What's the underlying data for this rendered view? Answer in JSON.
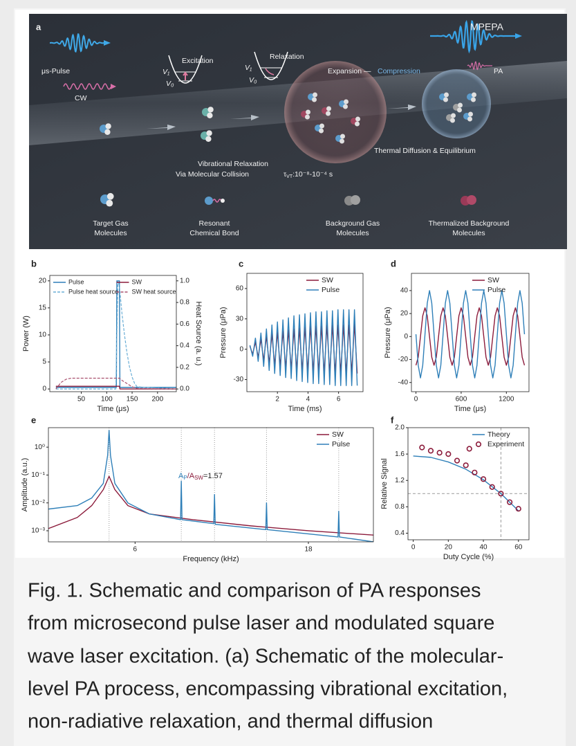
{
  "panel_a": {
    "label": "a",
    "pulse": "μs-Pulse",
    "cw": "CW",
    "excitation": "Excitation",
    "relaxation": "Relaxation",
    "v1": "V₁",
    "v0": "V₀",
    "expansion": "Expansion —",
    "compression": "Compression",
    "mpepa": "MPEPA",
    "pa": "PA",
    "thermal": "Thermal Diffusion & Equilibrium",
    "relaxation_lines": [
      "Vibrational Relaxation",
      "Via Molecular Collision"
    ],
    "tau": "τ",
    "tau_sub": "VT",
    "tau_range": ":10⁻⁸-10⁻⁴ s",
    "legend": [
      [
        "Target Gas",
        "Molecules"
      ],
      [
        "Resonant",
        "Chemical Bond"
      ],
      [
        "Background Gas",
        "Molecules"
      ],
      [
        "Thermalized Background",
        "Molecules"
      ]
    ]
  },
  "chart_data": [
    {
      "type": "line",
      "panel_label": "b",
      "xlabel": "Time (μs)",
      "ylabel": "Power (W)",
      "y2label": "Heat Source (a. u.)",
      "xlim": [
        -12,
        237
      ],
      "ylim": [
        -0.5,
        21
      ],
      "y2lim": [
        -0.025,
        1.05
      ],
      "xticks": [
        50,
        100,
        150,
        200
      ],
      "yticks": [
        0,
        5,
        10,
        15,
        20
      ],
      "y2ticks": [
        {
          "value": 0,
          "label": "0.0"
        },
        0.2,
        0.4,
        0.6,
        0.8,
        {
          "value": 1,
          "label": "1.0"
        }
      ],
      "legend": "upper left",
      "legend_columns": 2,
      "series": [
        {
          "name": "Pulse",
          "color": "#2e7fb8",
          "x": [
            0,
            119,
            120,
            125,
            126,
            237
          ],
          "values": [
            0.3,
            0.3,
            20,
            20,
            0.3,
            0.3
          ]
        },
        {
          "name": "Pulse heat source",
          "color": "#6aaed6",
          "dash": true,
          "axis": "y2",
          "x": [
            0,
            118,
            122,
            125,
            130,
            135,
            140,
            145,
            150,
            155,
            160,
            237
          ],
          "values": [
            0,
            0,
            1,
            0.95,
            0.7,
            0.5,
            0.33,
            0.2,
            0.11,
            0.05,
            0.02,
            0
          ]
        },
        {
          "name": "SW",
          "color": "#8b1a3a",
          "x": [
            0,
            125,
            126,
            237
          ],
          "values": [
            0.5,
            0.5,
            0,
            0
          ]
        },
        {
          "name": "SW heat source",
          "color": "#a8506e",
          "dash": true,
          "axis": "y2",
          "x": [
            0,
            10,
            20,
            30,
            40,
            60,
            125,
            130,
            140,
            150,
            160,
            237
          ],
          "values": [
            0,
            0.06,
            0.09,
            0.1,
            0.1,
            0.1,
            0.1,
            0.08,
            0.05,
            0.02,
            0.005,
            0
          ]
        }
      ]
    },
    {
      "type": "line",
      "panel_label": "c",
      "xlabel": "Time (ms)",
      "ylabel": "Pressure (μPa)",
      "xlim": [
        0,
        7.6
      ],
      "ylim": [
        -42,
        75
      ],
      "xticks": [
        2,
        4,
        6
      ],
      "yticks": [
        -30,
        0,
        30,
        60
      ],
      "legend": "upper right",
      "x": [
        0.2,
        0.38,
        0.56,
        0.74,
        0.92,
        1.1,
        1.28,
        1.46,
        1.64,
        1.82,
        2,
        2.18,
        2.36,
        2.54,
        2.72,
        2.9,
        3.08,
        3.26,
        3.44,
        3.62,
        3.8,
        3.98,
        4.16,
        4.34,
        4.52,
        4.7,
        4.88,
        5.06,
        5.24,
        5.42,
        5.6,
        5.78,
        5.96,
        6.14,
        6.32,
        6.5,
        6.68,
        6.86,
        7.04,
        7.22
      ],
      "series": [
        {
          "name": "SW",
          "color": "#8b1a3a",
          "values": [
            3,
            -5,
            7,
            -8,
            10,
            -11,
            13,
            -14,
            15,
            -16,
            17,
            -17,
            18,
            -19,
            19,
            -20,
            20,
            -21,
            21,
            -22,
            22,
            -22,
            23,
            -23,
            23,
            -23,
            23,
            -24,
            24,
            -24,
            24,
            -24,
            24,
            -24,
            24,
            -24,
            24,
            -24,
            25,
            -24
          ]
        },
        {
          "name": "Pulse",
          "color": "#2e7fb8",
          "values": [
            4,
            -7,
            11,
            -12,
            16,
            -17,
            20,
            -21,
            24,
            -24,
            27,
            -26,
            29,
            -28,
            31,
            -29,
            33,
            -31,
            34,
            -32,
            35,
            -33,
            36,
            -34,
            37,
            -34,
            37,
            -35,
            38,
            -35,
            38,
            -36,
            39,
            -36,
            39,
            -36,
            39,
            -36,
            39,
            -36
          ]
        }
      ]
    },
    {
      "type": "line",
      "panel_label": "d",
      "xlabel": "Time (μs)",
      "ylabel": "Pressure (μPa)",
      "xlim": [
        -60,
        1500
      ],
      "ylim": [
        -48,
        55
      ],
      "xticks": [
        0,
        600,
        1200
      ],
      "yticks": [
        -40,
        -20,
        0,
        20,
        40
      ],
      "legend": "upper right",
      "x": [
        0,
        30,
        60,
        90,
        120,
        150,
        180,
        210,
        240,
        270,
        300,
        330,
        360,
        390,
        420,
        450,
        480,
        510,
        540,
        570,
        600,
        630,
        660,
        690,
        720,
        750,
        780,
        810,
        840,
        870,
        900,
        930,
        960,
        990,
        1020,
        1050,
        1080,
        1110,
        1140,
        1170,
        1200,
        1230,
        1260,
        1290,
        1320,
        1350,
        1380,
        1410,
        1440
      ],
      "series": [
        {
          "name": "SW",
          "color": "#8b1a3a",
          "values": [
            -25,
            -18,
            0,
            18,
            25,
            18,
            0,
            -18,
            -25,
            -18,
            0,
            18,
            25,
            18,
            0,
            -18,
            -25,
            -18,
            0,
            18,
            25,
            18,
            0,
            -18,
            -25,
            -18,
            0,
            18,
            25,
            18,
            0,
            -18,
            -25,
            -18,
            0,
            18,
            25,
            18,
            0,
            -18,
            -25,
            -18,
            0,
            18,
            25,
            18,
            0,
            -18,
            -25
          ]
        },
        {
          "name": "Pulse",
          "color": "#2e7fb8",
          "values": [
            2,
            -25,
            -36,
            -25,
            2,
            29,
            40,
            29,
            2,
            -25,
            -36,
            -25,
            2,
            29,
            40,
            29,
            2,
            -25,
            -36,
            -25,
            2,
            29,
            40,
            29,
            2,
            -25,
            -36,
            -25,
            2,
            29,
            40,
            29,
            2,
            -25,
            -36,
            -25,
            2,
            29,
            40,
            29,
            2,
            -25,
            -36,
            -25,
            2,
            29,
            40,
            29,
            2
          ]
        }
      ]
    },
    {
      "type": "line",
      "panel_label": "e",
      "xlabel": "Frequency (kHz)",
      "ylabel": "Amplitude (a.u.)",
      "yscale": "log",
      "xlim": [
        0,
        22.5
      ],
      "ylim": [
        0.0004,
        5
      ],
      "xticks": [
        6,
        18
      ],
      "yticks": [
        {
          "value": 0.001,
          "label": "10⁻³"
        },
        {
          "value": 0.01,
          "label": "10⁻²"
        },
        {
          "value": 0.1,
          "label": "10⁻¹"
        },
        {
          "value": 1,
          "label": "10⁰"
        }
      ],
      "legend": "upper right",
      "vlines": [
        4.2,
        9.2,
        11.5,
        15.1,
        20.1
      ],
      "annotation_parts": [
        "A",
        "P",
        "/A",
        "SW",
        "=1.57"
      ],
      "series": [
        {
          "name": "SW",
          "color": "#8b1a3a",
          "x": [
            0,
            2,
            3,
            3.8,
            4.2,
            4.6,
            5.5,
            7,
            10,
            14,
            18,
            22.5
          ],
          "values": [
            0.0012,
            0.003,
            0.008,
            0.03,
            0.09,
            0.03,
            0.008,
            0.004,
            0.0025,
            0.0015,
            0.001,
            0.0007
          ]
        },
        {
          "name": "Pulse",
          "color": "#2e7fb8",
          "x": [
            0,
            2,
            3,
            3.8,
            4.1,
            4.2,
            4.3,
            4.6,
            5.5,
            7,
            9.15,
            9.2,
            9.25,
            11.45,
            11.5,
            11.55,
            15.05,
            15.1,
            15.15,
            20.05,
            20.1,
            20.15,
            22.5
          ],
          "values": [
            0.006,
            0.008,
            0.015,
            0.05,
            0.5,
            4,
            0.5,
            0.05,
            0.01,
            0.004,
            0.0025,
            0.06,
            0.0025,
            0.0018,
            0.02,
            0.0017,
            0.0011,
            0.01,
            0.0011,
            0.0006,
            0.005,
            0.0006,
            0.0004
          ]
        }
      ]
    },
    {
      "type": "line",
      "panel_label": "f",
      "xlabel": "Duty Cycle (%)",
      "ylabel": "Relative Signal",
      "xlim": [
        -3,
        66
      ],
      "ylim": [
        0.3,
        2
      ],
      "xticks": [
        0,
        20,
        40,
        60
      ],
      "yticks": [
        0.4,
        0.8,
        1.2,
        1.6,
        {
          "value": 2,
          "label": "2.0"
        }
      ],
      "legend": "upper right",
      "hlines": [
        1
      ],
      "vlines": [
        50
      ],
      "series": [
        {
          "name": "Theory",
          "color": "#2e7fb8",
          "x": [
            0,
            10,
            20,
            30,
            40,
            50,
            60
          ],
          "values": [
            1.57,
            1.55,
            1.48,
            1.37,
            1.21,
            1,
            0.74
          ]
        },
        {
          "name": "Experiment",
          "color": "#8b1a3a",
          "style": "circles",
          "x": [
            5,
            10,
            15,
            20,
            25,
            30,
            32,
            35,
            40,
            45,
            50,
            55,
            60
          ],
          "values": [
            1.7,
            1.65,
            1.62,
            1.6,
            1.5,
            1.43,
            1.68,
            1.32,
            1.22,
            1.1,
            1,
            0.87,
            0.77
          ]
        }
      ]
    }
  ],
  "caption": {
    "lines": [
      "Fig. 1. Schematic and comparison of PA responses",
      "from microsecond pulse laser and modulated square",
      "wave laser excitation. (a) Schematic of the molecular-",
      "level PA process, encompassing vibrational excitation,",
      "non-radiative relaxation, and thermal diffusion"
    ]
  }
}
